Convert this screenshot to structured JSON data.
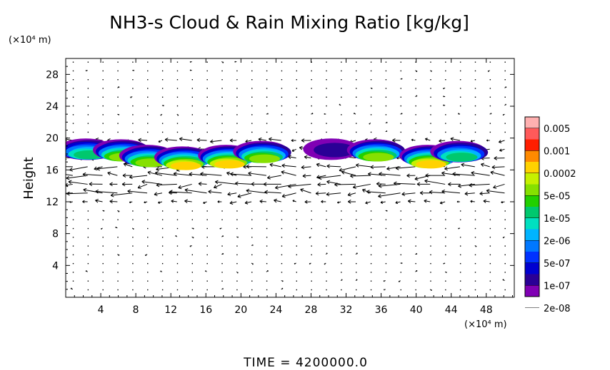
{
  "chart_data": {
    "type": "contour-fill + vector field",
    "title": "NH3-s Cloud & Rain Mixing Ratio [kg/kg]",
    "ylabel": "Height",
    "y_unit": "(×10⁴ m)",
    "x_unit": "(×10⁴ m)",
    "xlim": [
      0,
      51.2
    ],
    "ylim": [
      0,
      30
    ],
    "x_ticks": [
      4,
      8,
      12,
      16,
      20,
      24,
      28,
      32,
      36,
      40,
      44,
      48
    ],
    "y_ticks": [
      4,
      8,
      12,
      16,
      20,
      24,
      28
    ],
    "colorbar": {
      "levels": [
        "0.005",
        "0.001",
        "0.0002",
        "5e-05",
        "1e-05",
        "2e-06",
        "5e-07",
        "1e-07",
        "2e-08"
      ],
      "colors": [
        "#ffb0b0",
        "#ff5a5a",
        "#ff1e00",
        "#ff8a00",
        "#ffd200",
        "#c6f000",
        "#86e000",
        "#22d000",
        "#00c86e",
        "#00e0c0",
        "#00b4ff",
        "#0078ff",
        "#0032ff",
        "#0000d0",
        "#2a0096",
        "#8000b4"
      ]
    },
    "cloud_band_height_range": [
      17,
      19.5
    ],
    "cloud_cells": [
      {
        "x": 2.5,
        "y": 18.6,
        "peak_level": "1e-05"
      },
      {
        "x": 6.5,
        "y": 18.5,
        "peak_level": "5e-05"
      },
      {
        "x": 9.5,
        "y": 17.8,
        "peak_level": "5e-05"
      },
      {
        "x": 13.5,
        "y": 17.6,
        "peak_level": "0.0002"
      },
      {
        "x": 18.5,
        "y": 17.8,
        "peak_level": "0.0002"
      },
      {
        "x": 22.5,
        "y": 18.3,
        "peak_level": "5e-05"
      },
      {
        "x": 30.5,
        "y": 18.6,
        "peak_level": "1e-07"
      },
      {
        "x": 35.5,
        "y": 18.5,
        "peak_level": "5e-05"
      },
      {
        "x": 41.5,
        "y": 17.8,
        "peak_level": "0.0002"
      },
      {
        "x": 45.0,
        "y": 18.3,
        "peak_level": "1e-05"
      }
    ],
    "vector_field_note": "wind arrows, strongest westward flow near heights 13–17"
  },
  "footer": {
    "time_label": "TIME  =  4200000.0"
  }
}
